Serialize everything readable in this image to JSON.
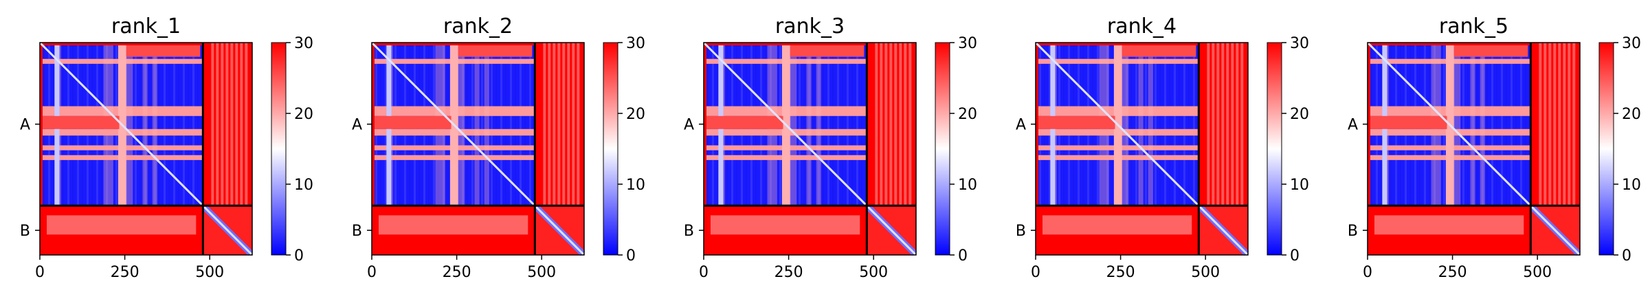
{
  "chart_data": [
    {
      "type": "heatmap",
      "title": "rank_1",
      "chains": [
        "A",
        "B"
      ],
      "chain_boundary": 480,
      "length": 625,
      "xticks": [
        0,
        250,
        500
      ],
      "colorbar": {
        "min": 0,
        "max": 30,
        "ticks": [
          0,
          10,
          20,
          30
        ],
        "colors": [
          "#0000ff",
          "#ffffff",
          "#ff0000"
        ]
      }
    },
    {
      "type": "heatmap",
      "title": "rank_2",
      "chains": [
        "A",
        "B"
      ],
      "chain_boundary": 480,
      "length": 625,
      "xticks": [
        0,
        250,
        500
      ],
      "colorbar": {
        "min": 0,
        "max": 30,
        "ticks": [
          0,
          10,
          20,
          30
        ],
        "colors": [
          "#0000ff",
          "#ffffff",
          "#ff0000"
        ]
      }
    },
    {
      "type": "heatmap",
      "title": "rank_3",
      "chains": [
        "A",
        "B"
      ],
      "chain_boundary": 480,
      "length": 625,
      "xticks": [
        0,
        250,
        500
      ],
      "colorbar": {
        "min": 0,
        "max": 30,
        "ticks": [
          0,
          10,
          20,
          30
        ],
        "colors": [
          "#0000ff",
          "#ffffff",
          "#ff0000"
        ]
      }
    },
    {
      "type": "heatmap",
      "title": "rank_4",
      "chains": [
        "A",
        "B"
      ],
      "chain_boundary": 480,
      "length": 625,
      "xticks": [
        0,
        250,
        500
      ],
      "colorbar": {
        "min": 0,
        "max": 30,
        "ticks": [
          0,
          10,
          20,
          30
        ],
        "colors": [
          "#0000ff",
          "#ffffff",
          "#ff0000"
        ]
      }
    },
    {
      "type": "heatmap",
      "title": "rank_5",
      "chains": [
        "A",
        "B"
      ],
      "chain_boundary": 480,
      "length": 625,
      "xticks": [
        0,
        250,
        500
      ],
      "colorbar": {
        "min": 0,
        "max": 30,
        "ticks": [
          0,
          10,
          20,
          30
        ],
        "colors": [
          "#0000ff",
          "#ffffff",
          "#ff0000"
        ]
      }
    }
  ]
}
